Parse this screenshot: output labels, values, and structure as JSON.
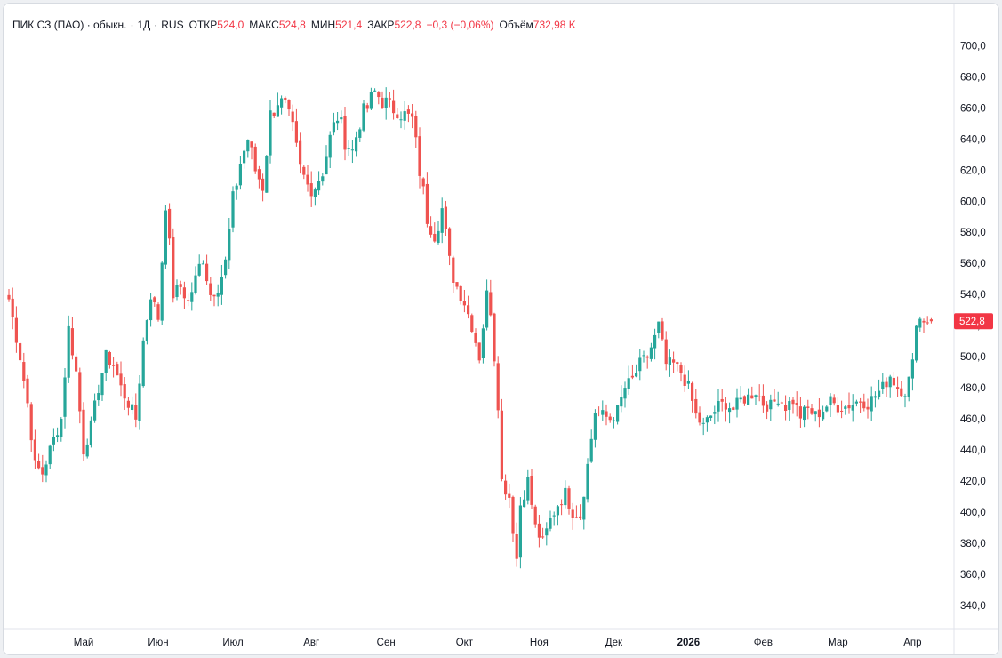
{
  "legend": {
    "symbol": "ПИК СЗ (ПАО) · обыкн.",
    "interval": "1Д",
    "exchange": "RUS",
    "open_label": "ОТКР",
    "open_value": "524,0",
    "high_label": "МАКС",
    "high_value": "524,8",
    "low_label": "МИН",
    "low_value": "521,4",
    "close_label": "ЗАКР",
    "close_value": "522,8",
    "change_value": "−0,3 (−0,06%)",
    "volume_label": "Объём",
    "volume_value": "732,98 K"
  },
  "colors": {
    "up": "#26a69a",
    "down": "#ef5350",
    "price_tag": "#f23645"
  },
  "chart_data": {
    "type": "candlestick",
    "ylim": [
      325,
      710
    ],
    "y_ticks": [
      "700,0",
      "680,0",
      "660,0",
      "640,0",
      "620,0",
      "600,0",
      "580,0",
      "560,0",
      "540,0",
      "520,0",
      "500,0",
      "480,0",
      "460,0",
      "440,0",
      "420,0",
      "400,0",
      "380,0",
      "360,0",
      "340,0"
    ],
    "y_tick_values": [
      700,
      680,
      660,
      640,
      620,
      600,
      580,
      560,
      540,
      520,
      500,
      480,
      460,
      440,
      420,
      400,
      380,
      360,
      340
    ],
    "x_ticks": [
      {
        "label": "Май",
        "bar": 20
      },
      {
        "label": "Июн",
        "bar": 40
      },
      {
        "label": "Июл",
        "bar": 60
      },
      {
        "label": "Авг",
        "bar": 81
      },
      {
        "label": "Сен",
        "bar": 101
      },
      {
        "label": "Окт",
        "bar": 122
      },
      {
        "label": "Ноя",
        "bar": 142
      },
      {
        "label": "Дек",
        "bar": 162
      },
      {
        "label": "2026",
        "bar": 182,
        "bold": true
      },
      {
        "label": "Фев",
        "bar": 202
      },
      {
        "label": "Мар",
        "bar": 222
      },
      {
        "label": "Апр",
        "bar": 242
      }
    ],
    "bar_count": 252,
    "last_price_label": "522,8",
    "last_price": 522.8,
    "anchors": [
      [
        0,
        537
      ],
      [
        3,
        500
      ],
      [
        5,
        470
      ],
      [
        7,
        430
      ],
      [
        9,
        425
      ],
      [
        11,
        440
      ],
      [
        14,
        460
      ],
      [
        16,
        518
      ],
      [
        18,
        490
      ],
      [
        20,
        440
      ],
      [
        22,
        455
      ],
      [
        24,
        480
      ],
      [
        26,
        500
      ],
      [
        28,
        495
      ],
      [
        30,
        480
      ],
      [
        32,
        470
      ],
      [
        34,
        460
      ],
      [
        36,
        510
      ],
      [
        38,
        540
      ],
      [
        40,
        525
      ],
      [
        42,
        600
      ],
      [
        44,
        540
      ],
      [
        46,
        545
      ],
      [
        48,
        535
      ],
      [
        50,
        550
      ],
      [
        52,
        565
      ],
      [
        54,
        540
      ],
      [
        56,
        545
      ],
      [
        58,
        560
      ],
      [
        60,
        600
      ],
      [
        62,
        625
      ],
      [
        64,
        640
      ],
      [
        66,
        620
      ],
      [
        68,
        610
      ],
      [
        70,
        655
      ],
      [
        72,
        665
      ],
      [
        74,
        660
      ],
      [
        76,
        645
      ],
      [
        78,
        620
      ],
      [
        80,
        610
      ],
      [
        82,
        610
      ],
      [
        84,
        620
      ],
      [
        86,
        640
      ],
      [
        88,
        655
      ],
      [
        90,
        640
      ],
      [
        92,
        632
      ],
      [
        94,
        652
      ],
      [
        96,
        660
      ],
      [
        98,
        670
      ],
      [
        100,
        665
      ],
      [
        102,
        660
      ],
      [
        104,
        660
      ],
      [
        106,
        655
      ],
      [
        108,
        652
      ],
      [
        110,
        620
      ],
      [
        112,
        590
      ],
      [
        114,
        580
      ],
      [
        116,
        595
      ],
      [
        118,
        560
      ],
      [
        120,
        545
      ],
      [
        122,
        535
      ],
      [
        124,
        520
      ],
      [
        126,
        500
      ],
      [
        128,
        540
      ],
      [
        129,
        530
      ],
      [
        131,
        470
      ],
      [
        132,
        420
      ],
      [
        134,
        410
      ],
      [
        136,
        370
      ],
      [
        137,
        405
      ],
      [
        139,
        420
      ],
      [
        141,
        390
      ],
      [
        143,
        380
      ],
      [
        145,
        395
      ],
      [
        147,
        405
      ],
      [
        149,
        412
      ],
      [
        151,
        400
      ],
      [
        153,
        398
      ],
      [
        155,
        430
      ],
      [
        157,
        465
      ],
      [
        159,
        462
      ],
      [
        161,
        460
      ],
      [
        163,
        465
      ],
      [
        165,
        480
      ],
      [
        167,
        485
      ],
      [
        169,
        495
      ],
      [
        171,
        500
      ],
      [
        173,
        512
      ],
      [
        174,
        520
      ],
      [
        176,
        495
      ],
      [
        178,
        495
      ],
      [
        180,
        490
      ],
      [
        182,
        480
      ],
      [
        184,
        462
      ],
      [
        186,
        455
      ],
      [
        188,
        462
      ],
      [
        190,
        468
      ],
      [
        192,
        470
      ],
      [
        194,
        466
      ],
      [
        196,
        472
      ],
      [
        198,
        474
      ],
      [
        200,
        478
      ],
      [
        202,
        470
      ],
      [
        204,
        468
      ],
      [
        206,
        474
      ],
      [
        208,
        468
      ],
      [
        210,
        472
      ],
      [
        212,
        462
      ],
      [
        214,
        466
      ],
      [
        216,
        462
      ],
      [
        218,
        466
      ],
      [
        220,
        471
      ],
      [
        222,
        468
      ],
      [
        224,
        468
      ],
      [
        226,
        470
      ],
      [
        228,
        472
      ],
      [
        230,
        470
      ],
      [
        232,
        475
      ],
      [
        234,
        480
      ],
      [
        236,
        488
      ],
      [
        238,
        480
      ],
      [
        240,
        478
      ],
      [
        241,
        485
      ],
      [
        242,
        495
      ],
      [
        243,
        524
      ],
      [
        245,
        524
      ],
      [
        247,
        522.8
      ]
    ]
  }
}
